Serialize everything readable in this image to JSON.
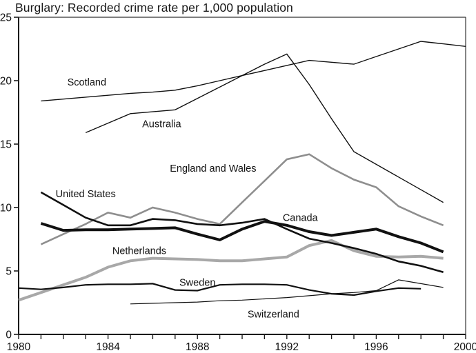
{
  "chart_data": {
    "type": "line",
    "title": "Burglary: Recorded crime rate per 1,000 population",
    "xlabel": "",
    "ylabel": "",
    "xlim": [
      1980,
      2000
    ],
    "ylim": [
      0,
      25
    ],
    "x": [
      1980,
      1981,
      1982,
      1983,
      1984,
      1985,
      1986,
      1987,
      1988,
      1989,
      1990,
      1991,
      1992,
      1993,
      1994,
      1995,
      1996,
      1997,
      1998,
      1999,
      2000
    ],
    "x_tick_labels": [
      1980,
      1984,
      1988,
      1992,
      1996,
      2000
    ],
    "y_ticks": [
      0,
      5,
      10,
      15,
      20,
      25
    ],
    "grid": false,
    "legend_position": "inline-labels-on-lines",
    "colors": {
      "black_line": "#111111",
      "gray_line_england_wales": "#8e8e8e",
      "gray_line_netherlands": "#a8a8a8",
      "axis": "#1a1a1a",
      "background": "#ffffff"
    },
    "series": [
      {
        "id": "netherlands",
        "name": "Netherlands",
        "color": "#a8a8a8",
        "width": 4,
        "label": {
          "text": "Netherlands",
          "x": 1985.4,
          "y": 6.6
        },
        "values": [
          2.7,
          3.3,
          3.9,
          4.5,
          5.3,
          5.8,
          6.0,
          5.95,
          5.9,
          5.8,
          5.8,
          5.95,
          6.1,
          7.0,
          7.4,
          6.6,
          6.15,
          6.1,
          6.15,
          6.0,
          null
        ]
      },
      {
        "id": "england-wales",
        "name": "England and Wales",
        "color": "#8e8e8e",
        "width": 2.6,
        "label": {
          "text": "England and Wales",
          "x": 1988.7,
          "y": 13.1
        },
        "values": [
          null,
          7.1,
          7.9,
          8.7,
          9.6,
          9.2,
          10.0,
          9.6,
          9.1,
          8.7,
          10.4,
          12.1,
          13.8,
          14.2,
          13.1,
          12.2,
          11.6,
          10.1,
          9.3,
          8.6,
          null
        ]
      },
      {
        "id": "switzerland",
        "name": "Switzerland",
        "color": "#111111",
        "width": 1.2,
        "label": {
          "text": "Switzerland",
          "x": 1991.4,
          "y": 1.6
        },
        "values": [
          null,
          null,
          null,
          null,
          null,
          2.4,
          2.45,
          2.5,
          2.55,
          2.65,
          2.7,
          2.8,
          2.9,
          3.05,
          3.2,
          3.3,
          3.45,
          4.3,
          4.0,
          3.7,
          null
        ]
      },
      {
        "id": "sweden",
        "name": "Sweden",
        "color": "#111111",
        "width": 2.2,
        "label": {
          "text": "Sweden",
          "x": 1988.0,
          "y": 4.1
        },
        "values": [
          3.65,
          3.55,
          3.7,
          3.9,
          3.95,
          3.95,
          4.0,
          3.5,
          3.45,
          3.9,
          3.95,
          3.95,
          3.9,
          3.5,
          3.2,
          3.1,
          3.4,
          3.65,
          3.6,
          null,
          null
        ]
      },
      {
        "id": "united-states",
        "name": "United States",
        "color": "#111111",
        "width": 2.6,
        "label": {
          "text": "United States",
          "x": 1983.0,
          "y": 11.1
        },
        "values": [
          null,
          11.2,
          10.2,
          9.2,
          8.6,
          8.6,
          9.1,
          9.0,
          8.7,
          8.6,
          8.8,
          9.1,
          8.3,
          7.55,
          7.2,
          6.8,
          6.35,
          5.75,
          5.4,
          4.9,
          null
        ]
      },
      {
        "id": "canada",
        "name": "Canada",
        "color": "#111111",
        "width": 4,
        "label": {
          "text": "Canada",
          "x": 1992.6,
          "y": 9.2
        },
        "values": [
          null,
          8.75,
          8.2,
          8.25,
          8.25,
          8.3,
          8.35,
          8.4,
          7.9,
          7.45,
          8.3,
          8.9,
          8.6,
          8.1,
          7.8,
          8.05,
          8.3,
          7.7,
          7.2,
          6.5,
          null
        ]
      },
      {
        "id": "scotland",
        "name": "Scotland",
        "color": "#111111",
        "width": 1.4,
        "label": {
          "text": "Scotland",
          "x": 1983.05,
          "y": 19.9
        },
        "values": [
          null,
          18.4,
          18.55,
          18.7,
          18.85,
          19.0,
          19.1,
          19.25,
          19.6,
          20.0,
          20.4,
          20.8,
          21.2,
          21.6,
          21.45,
          21.3,
          21.9,
          22.5,
          23.1,
          22.9,
          22.7
        ]
      },
      {
        "id": "australia",
        "name": "Australia",
        "color": "#111111",
        "width": 1.4,
        "label": {
          "text": "Australia",
          "x": 1986.4,
          "y": 16.6
        },
        "values": [
          null,
          null,
          null,
          15.9,
          16.65,
          17.4,
          17.55,
          17.7,
          18.6,
          19.5,
          20.4,
          21.3,
          22.1,
          19.7,
          17.0,
          14.4,
          13.4,
          12.4,
          11.4,
          10.4,
          null
        ]
      }
    ]
  }
}
